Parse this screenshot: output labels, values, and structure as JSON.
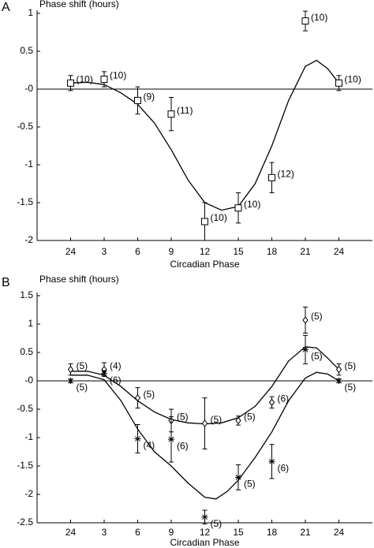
{
  "chart_data": [
    {
      "type": "scatter",
      "panel": "A",
      "y_label": "Phase shift  (hours)",
      "x_label": "Circadian  Phase",
      "xlim": [
        -3,
        27
      ],
      "ylim": [
        -2,
        1
      ],
      "xticks": [
        {
          "value": 0,
          "label": "24"
        },
        3,
        6,
        9,
        12,
        15,
        18,
        21,
        24
      ],
      "yticks": [
        1,
        0.5,
        {
          "value": 0,
          "label": "-0"
        },
        -0.5,
        -1,
        -1.5,
        -2
      ],
      "zero_line": true,
      "color": "#000000",
      "series": [
        {
          "marker": "square",
          "x": [
            0,
            3,
            6,
            9,
            12,
            15,
            18,
            21,
            24
          ],
          "values": [
            0.08,
            0.13,
            -0.15,
            -0.33,
            -1.75,
            -1.57,
            -1.17,
            0.9,
            0.08
          ],
          "errors": [
            0.1,
            0.1,
            0.18,
            0.22,
            0.25,
            0.2,
            0.2,
            0.13,
            0.1
          ],
          "n_labels": [
            "(10)",
            "(10)",
            "(9)",
            "(11)",
            "(10)",
            "(10)",
            "(12)",
            "(10)",
            "(10)"
          ],
          "fit": {
            "x": [
              0,
              1.5,
              3,
              4.5,
              6,
              7.5,
              9,
              10.5,
              12,
              13.5,
              15,
              16.5,
              18,
              19.5,
              21,
              22,
              23,
              24
            ],
            "values": [
              0.08,
              0.09,
              0.06,
              -0.05,
              -0.2,
              -0.45,
              -0.8,
              -1.2,
              -1.5,
              -1.6,
              -1.55,
              -1.25,
              -0.75,
              -0.15,
              0.3,
              0.38,
              0.27,
              0.08
            ]
          }
        }
      ]
    },
    {
      "type": "scatter",
      "panel": "B",
      "y_label": "Phase shift  (hours)",
      "x_label": "Circadian  Phase",
      "xlim": [
        -3,
        27
      ],
      "ylim": [
        -2.5,
        1.5
      ],
      "xticks": [
        {
          "value": 0,
          "label": "24"
        },
        3,
        6,
        9,
        12,
        15,
        18,
        21,
        24
      ],
      "yticks": [
        1.5,
        1,
        0.5,
        {
          "value": 0,
          "label": "-0"
        },
        -0.5,
        -1,
        -1.5,
        -2,
        -2.5
      ],
      "zero_line": true,
      "color": "#000000",
      "series": [
        {
          "marker": "diamond",
          "x": [
            0,
            3,
            6,
            9,
            12,
            15,
            18,
            21,
            24
          ],
          "values": [
            0.2,
            0.2,
            -0.3,
            -0.7,
            -0.75,
            -0.7,
            -0.38,
            1.07,
            0.2
          ],
          "errors": [
            0.1,
            0.12,
            0.18,
            0.2,
            0.45,
            0.08,
            0.1,
            0.23,
            0.1
          ],
          "n_labels": [
            "(5)",
            "(4)",
            "(5)",
            "(5)",
            "(5)",
            "(5)",
            "(6)",
            "(5)",
            "(5)"
          ],
          "fit": {
            "x": [
              0,
              1.5,
              3,
              4.5,
              6,
              7.5,
              9,
              10.5,
              12,
              13.5,
              15,
              16.5,
              18,
              19.5,
              21,
              22,
              23,
              24
            ],
            "values": [
              0.17,
              0.17,
              0.1,
              -0.1,
              -0.35,
              -0.55,
              -0.68,
              -0.74,
              -0.76,
              -0.74,
              -0.65,
              -0.45,
              -0.1,
              0.35,
              0.6,
              0.58,
              0.4,
              0.2
            ]
          }
        },
        {
          "marker": "star",
          "x": [
            0,
            3,
            6,
            9,
            12,
            15,
            18,
            21,
            24
          ],
          "values": [
            0,
            0.13,
            -1.02,
            -1.03,
            -2.4,
            -1.7,
            -1.42,
            0.55,
            0
          ],
          "errors": [
            0.03,
            0.05,
            0.25,
            0.4,
            0.12,
            0.22,
            0.3,
            0.25,
            0.03
          ],
          "n_labels": [
            "(5)",
            "(6)",
            "(4)",
            "(6)",
            "(5)",
            "(5)",
            "(6)",
            "(5)",
            "(5)"
          ],
          "fit": {
            "x": [
              0,
              1.5,
              3,
              4.5,
              6,
              7.5,
              9,
              10.5,
              12,
              13,
              14,
              15,
              16.5,
              18,
              19.5,
              21,
              22,
              23,
              24
            ],
            "values": [
              0.1,
              0.1,
              0.02,
              -0.35,
              -0.85,
              -1.25,
              -1.5,
              -1.8,
              -2.05,
              -2.08,
              -1.95,
              -1.75,
              -1.35,
              -0.9,
              -0.35,
              0.05,
              0.15,
              0.12,
              0
            ]
          }
        }
      ]
    }
  ]
}
